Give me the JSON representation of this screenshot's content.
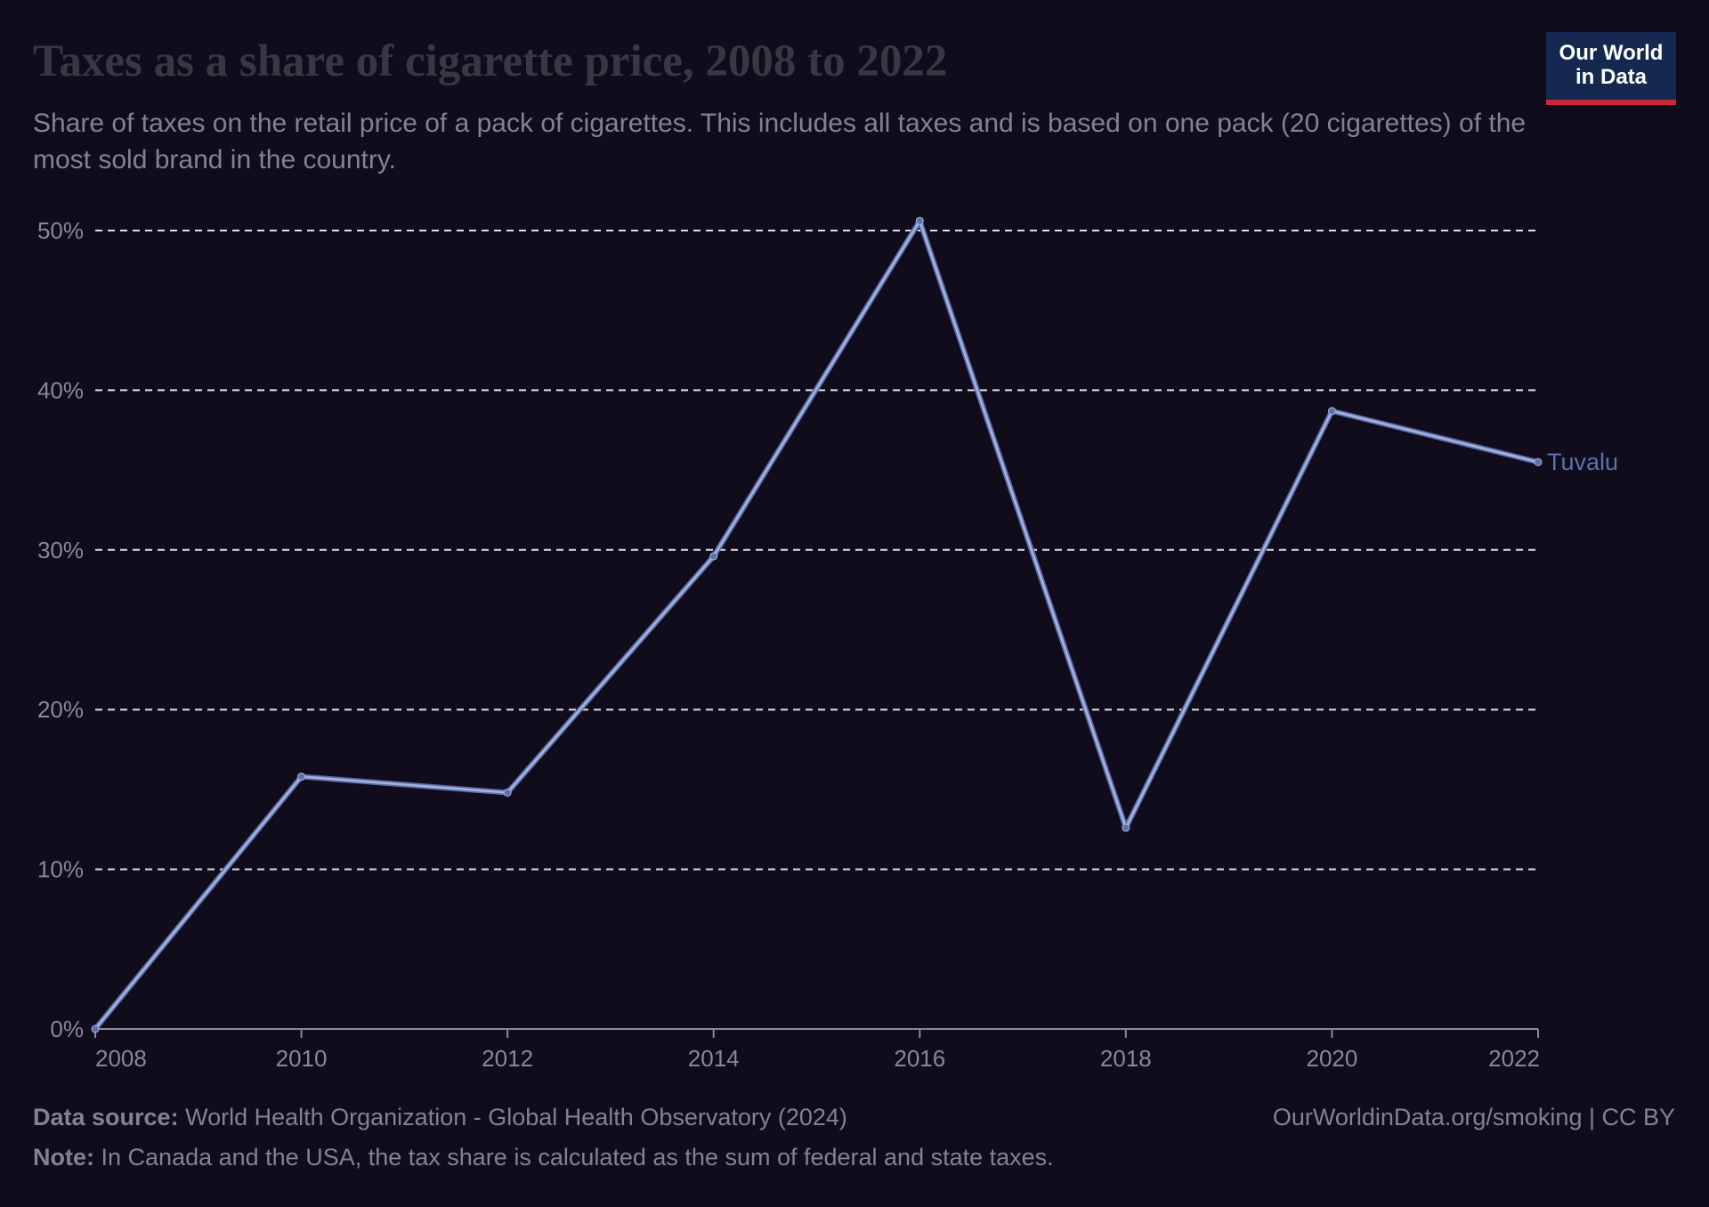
{
  "title": "Taxes as a share of cigarette price, 2008 to 2022",
  "subtitle": "Share of taxes on the retail price of a pack of cigarettes. This includes all taxes and is based on one pack (20 cigarettes) of the most sold brand in the country.",
  "logo": {
    "line1": "Our World",
    "line2": "in Data"
  },
  "footer": {
    "source_label": "Data source:",
    "source_text": "World Health Organization - Global Health Observatory (2024)",
    "note_label": "Note:",
    "note_text": "In Canada and the USA, the tax share is calculated as the sum of federal and state taxes.",
    "url": "OurWorldinData.org/smoking | CC BY"
  },
  "colors": {
    "background": "#100c1c",
    "line": "#a8b4dc",
    "marker": "#5d6fac",
    "label": "#5d6fac",
    "grid": "#e0dfe6"
  },
  "chart_data": {
    "type": "line",
    "x": [
      2008,
      2010,
      2012,
      2014,
      2016,
      2018,
      2020,
      2022
    ],
    "series": [
      {
        "name": "Tuvalu",
        "values": [
          0,
          15.8,
          14.8,
          29.6,
          50.6,
          12.6,
          38.7,
          35.5
        ]
      }
    ],
    "x_ticks": [
      2008,
      2010,
      2012,
      2014,
      2016,
      2018,
      2020,
      2022
    ],
    "x_tick_labels": [
      "2008",
      "2010",
      "2012",
      "2014",
      "2016",
      "2018",
      "2020",
      "2022"
    ],
    "y_ticks": [
      0,
      10,
      20,
      30,
      40,
      50
    ],
    "y_tick_labels": [
      "0%",
      "10%",
      "20%",
      "30%",
      "40%",
      "50%"
    ],
    "xlim": [
      2008,
      2022
    ],
    "ylim": [
      0,
      50
    ],
    "grid": "horizontal dashed",
    "legend": "inline label at line end"
  }
}
